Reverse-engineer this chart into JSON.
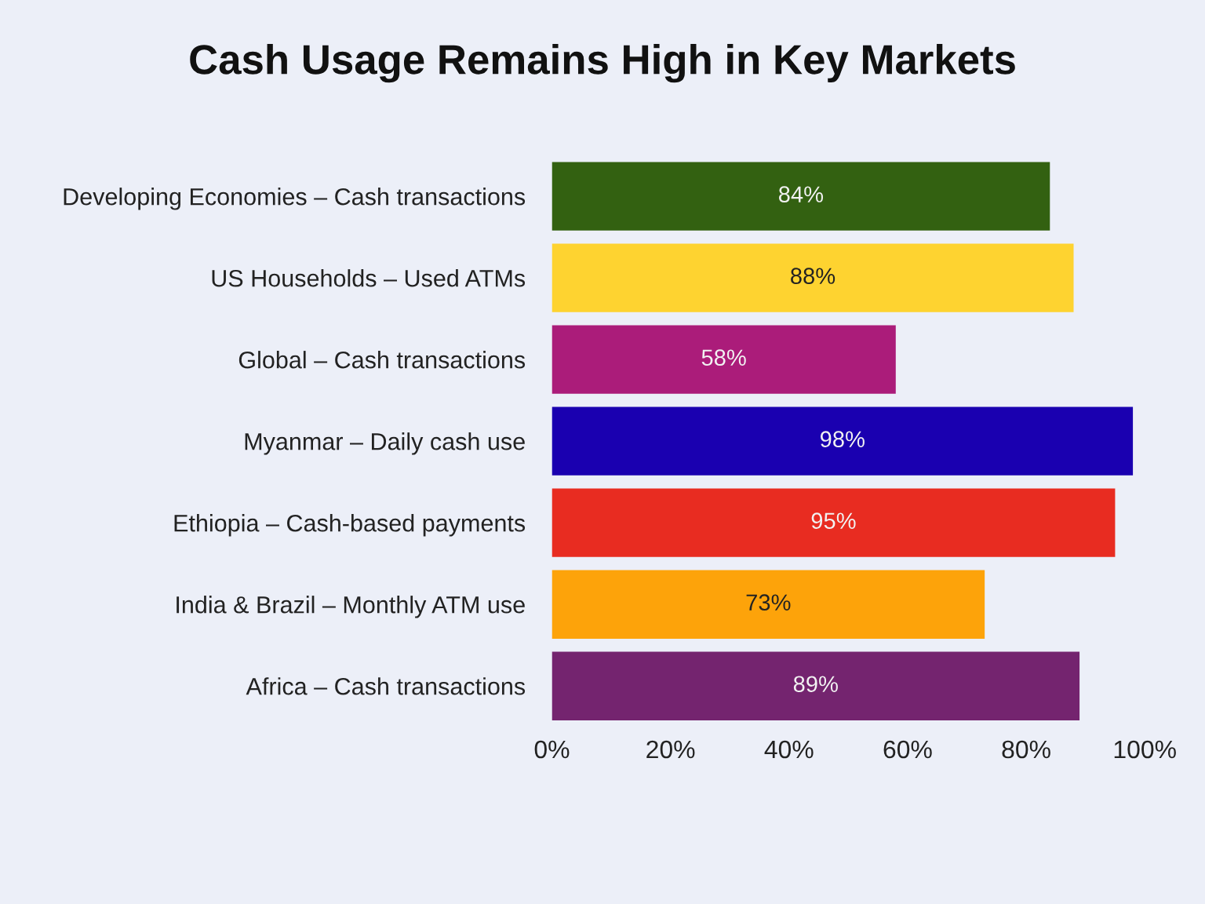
{
  "chart_data": {
    "type": "bar",
    "orientation": "horizontal",
    "title": "Cash Usage Remains High in Key Markets",
    "categories": [
      "Developing Economies – Cash transactions",
      "US Households – Used ATMs",
      "Global – Cash transactions",
      "Myanmar – Daily cash use",
      "Ethiopia – Cash-based payments",
      "India & Brazil – Monthly ATM use",
      "Africa – Cash transactions"
    ],
    "values": [
      84,
      88,
      58,
      98,
      95,
      73,
      89
    ],
    "colors": [
      "#336111",
      "#fed330",
      "#ab1c7a",
      "#1a00b0",
      "#e82c21",
      "#fda30a",
      "#74246f"
    ],
    "value_labels": [
      "84%",
      "88%",
      "58%",
      "98%",
      "95%",
      "73%",
      "89%"
    ],
    "xlim": [
      0,
      100
    ],
    "xticks": [
      {
        "value": 0,
        "label": "0%"
      },
      {
        "value": 20,
        "label": "20%"
      },
      {
        "value": 40,
        "label": "40%"
      },
      {
        "value": 60,
        "label": "60%"
      },
      {
        "value": 80,
        "label": "80%"
      },
      {
        "value": 100,
        "label": "100%"
      }
    ]
  }
}
